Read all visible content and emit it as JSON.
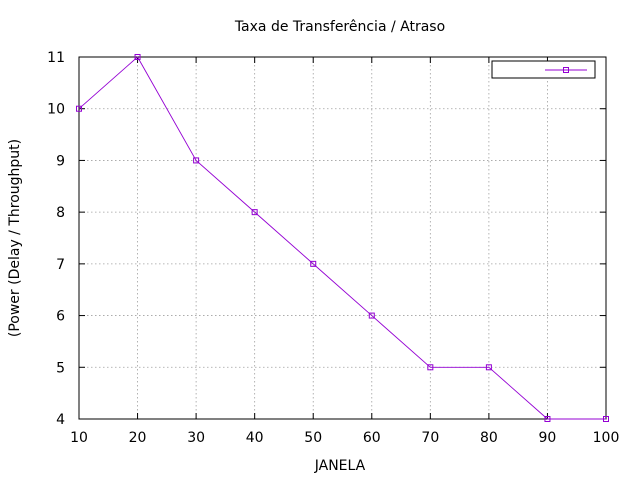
{
  "chart_data": {
    "type": "line",
    "title": "Taxa de Transferência / Atraso",
    "xlabel": "JANELA",
    "ylabel": "(Power (Delay / Throughput)",
    "x": [
      10,
      20,
      30,
      40,
      50,
      60,
      70,
      80,
      90,
      100
    ],
    "series": [
      {
        "values": [
          10,
          11,
          9,
          8,
          7,
          6,
          5,
          5,
          4,
          4
        ]
      }
    ],
    "xlim": [
      10,
      100
    ],
    "ylim": [
      4,
      11
    ],
    "xticks": [
      10,
      20,
      30,
      40,
      50,
      60,
      70,
      80,
      90,
      100
    ],
    "yticks": [
      4,
      5,
      6,
      7,
      8,
      9,
      10,
      11
    ],
    "grid": true,
    "legend_position": "top-right",
    "colors": {
      "series": "#9400d3",
      "grid": "#a0a0a0",
      "frame": "#000000"
    }
  }
}
